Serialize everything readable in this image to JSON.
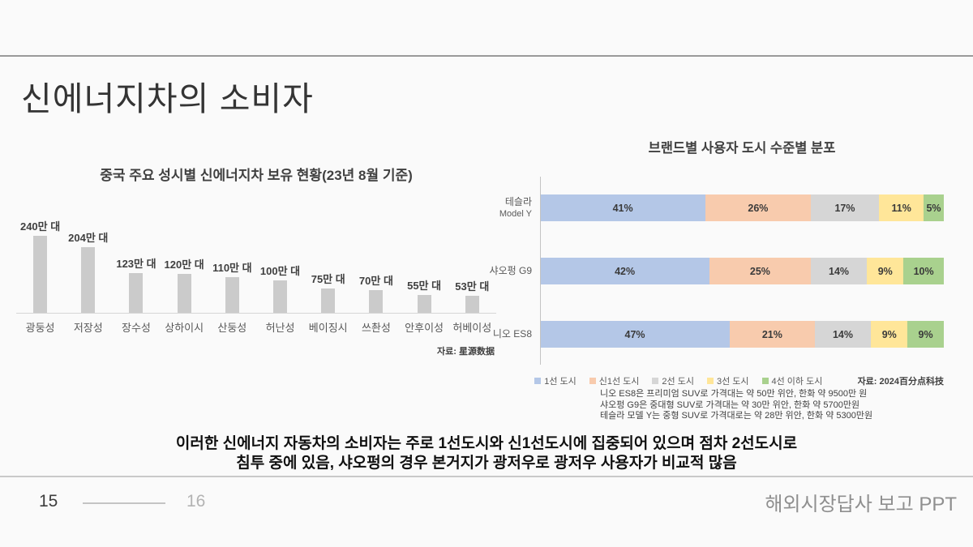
{
  "slide": {
    "title": "신에너지차의 소비자",
    "background_color": "#fafafa"
  },
  "chart_data": [
    {
      "type": "bar",
      "title": "중국 주요 성시별 신에너지차 보유 현황(23년 8월 기준)",
      "xlabel": "",
      "ylabel": "",
      "unit": "만 대",
      "categories": [
        "광둥성",
        "저장성",
        "장수성",
        "상하이시",
        "산둥성",
        "허난성",
        "베이징시",
        "쓰촨성",
        "안후이성",
        "허베이성"
      ],
      "values": [
        240,
        204,
        123,
        120,
        110,
        100,
        75,
        70,
        55,
        53
      ],
      "value_labels": [
        "240만 대",
        "204만 대",
        "123만 대",
        "120만 대",
        "110만 대",
        "100만 대",
        "75만 대",
        "70만 대",
        "55만 대",
        "53만 대"
      ],
      "ylim": [
        0,
        240
      ],
      "grid": false,
      "bar_color": "#cbcbcb",
      "source": "자료: 星源数据"
    },
    {
      "type": "stacked-bar",
      "orientation": "horizontal",
      "title": "브랜드별 사용자 도시 수준별 분포",
      "categories": [
        {
          "line1": "테슬라",
          "line2": "Model Y"
        },
        {
          "line1": "샤오펑 G9"
        },
        {
          "line1": "니오 ES8"
        }
      ],
      "series": [
        {
          "name": "1선 도시",
          "color": "#b4c7e7",
          "values": [
            41,
            42,
            47
          ]
        },
        {
          "name": "신1선 도시",
          "color": "#f8cbad",
          "values": [
            26,
            25,
            21
          ]
        },
        {
          "name": "2선 도시",
          "color": "#d6d6d6",
          "values": [
            17,
            14,
            14
          ]
        },
        {
          "name": "3선 도시",
          "color": "#ffe699",
          "values": [
            11,
            9,
            9
          ]
        },
        {
          "name": "4선 이하 도시",
          "color": "#a9d18e",
          "values": [
            5,
            10,
            9
          ]
        }
      ],
      "value_suffix": "%",
      "xlim": [
        0,
        100
      ],
      "legend_position": "bottom",
      "source": "자료: 2024百分点科技"
    }
  ],
  "notes": {
    "lines": [
      "니오 ES8은 프리미엄 SUV로 가격대는 약 50만 위안, 한화 약 9500만 원",
      "샤오펑 G9은 중대형 SUV로 가격대는 약 30만 위안, 한화 약 5700만원",
      "테슬라 모델 Y는 중형 SUV로 가격대로는 약 28만 위안, 한화 약 5300만원"
    ]
  },
  "summary": {
    "line1": "이러한 신에너지 자동차의 소비자는 주로 1선도시와 신1선도시에 집중되어 있으며 점차 2선도시로",
    "line2": "침투 중에 있음, 샤오펑의 경우 본거지가 광저우로 광저우 사용자가 비교적 많음"
  },
  "footer": {
    "page_current": "15",
    "page_next": "16",
    "doc_label": "해외시장답사 보고 PPT"
  }
}
